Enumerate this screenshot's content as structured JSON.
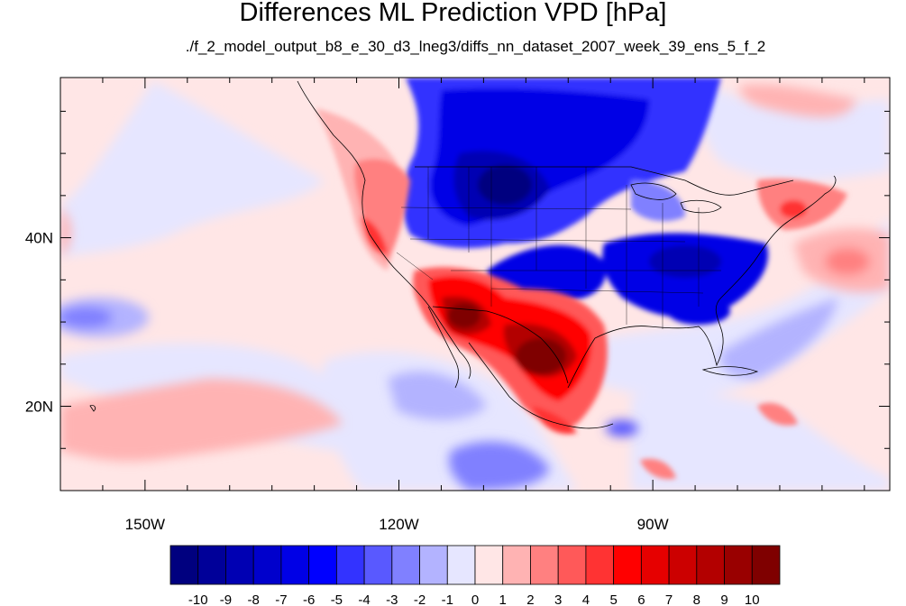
{
  "title": "Differences ML Prediction VPD [hPa]",
  "subtitle": "./f_2_model_output_b8_e_30_d3_lneg3/diffs_nn_dataset_2007_week_39_ens_5_f_2",
  "map": {
    "lon_range": [
      -160,
      -62
    ],
    "lat_range": [
      10,
      59
    ],
    "lat_labels": [
      {
        "value": 40,
        "text": "40N"
      },
      {
        "value": 20,
        "text": "20N"
      }
    ],
    "lon_labels": [
      {
        "value": -150,
        "text": "150W"
      },
      {
        "value": -120,
        "text": "120W"
      },
      {
        "value": -90,
        "text": "90W"
      }
    ]
  },
  "colorbar": {
    "labels": [
      "-10",
      "-9",
      "-8",
      "-7",
      "-6",
      "-5",
      "-4",
      "-3",
      "-2",
      "-1",
      "0",
      "1",
      "2",
      "3",
      "4",
      "5",
      "6",
      "7",
      "8",
      "9",
      "10"
    ],
    "colors": [
      "#00007f",
      "#000099",
      "#0000b3",
      "#0000cc",
      "#0000e6",
      "#0000ff",
      "#3333ff",
      "#5959ff",
      "#8080ff",
      "#b3b3ff",
      "#e6e6ff",
      "#ffe6e6",
      "#ffb3b3",
      "#ff8080",
      "#ff5959",
      "#ff3333",
      "#ff0000",
      "#e60000",
      "#cc0000",
      "#b30000",
      "#990000",
      "#7f0000"
    ]
  }
}
